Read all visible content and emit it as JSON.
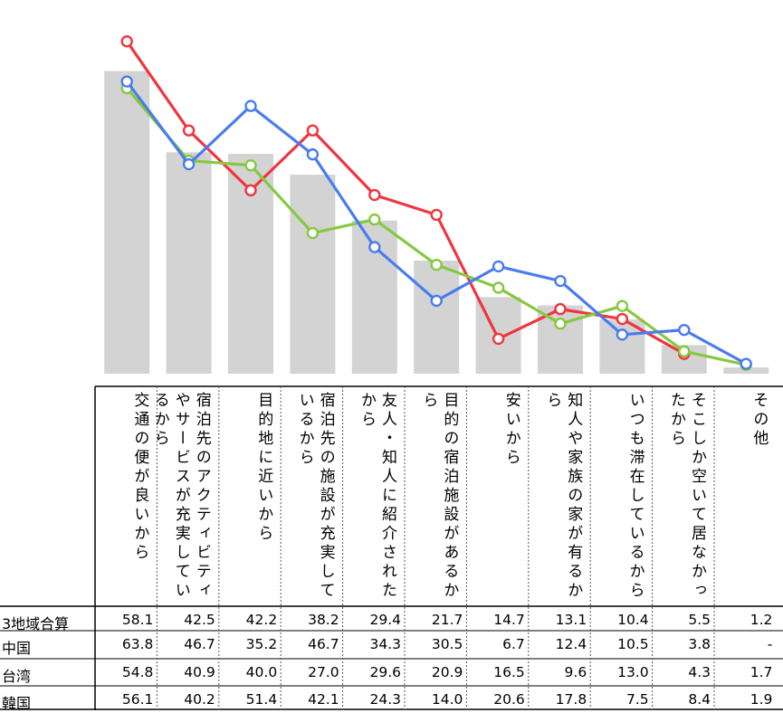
{
  "chart_data": {
    "type": "bar",
    "categories": [
      "交通の便が良いから",
      "宿泊先のアクティビティやサービスが充実しているから",
      "目的地に近いから",
      "宿泊先の施設が充実しているから",
      "友人・知人に紹介されたから",
      "目的の宿泊施設があるから",
      "安いから",
      "知人や家族の家が有るから",
      "いつも滞在しているから",
      "そこしか空いて居なかったから",
      "その他"
    ],
    "series": [
      {
        "name": "3地域合算",
        "chart": "bar",
        "color": "#d3d3d3",
        "values": [
          58.1,
          42.5,
          42.2,
          38.2,
          29.4,
          21.7,
          14.7,
          13.1,
          10.4,
          5.5,
          1.2
        ]
      },
      {
        "name": "中国",
        "chart": "line",
        "color": "#f0353f",
        "values": [
          63.8,
          46.7,
          35.2,
          46.7,
          34.3,
          30.5,
          6.7,
          12.4,
          10.5,
          3.8,
          null
        ]
      },
      {
        "name": "台湾",
        "chart": "line",
        "color": "#86c93f",
        "values": [
          54.8,
          40.9,
          40.0,
          27.0,
          29.6,
          20.9,
          16.5,
          9.6,
          13.0,
          4.3,
          1.7
        ]
      },
      {
        "name": "韓国",
        "chart": "line",
        "color": "#4a7cf0",
        "values": [
          56.1,
          40.2,
          51.4,
          42.1,
          24.3,
          14.0,
          20.6,
          17.8,
          7.5,
          8.4,
          1.9
        ]
      }
    ],
    "table_values": [
      [
        "58.1",
        "42.5",
        "42.2",
        "38.2",
        "29.4",
        "21.7",
        "14.7",
        "13.1",
        "10.4",
        "5.5",
        "1.2"
      ],
      [
        "63.8",
        "46.7",
        "35.2",
        "46.7",
        "34.3",
        "30.5",
        "6.7",
        "12.4",
        "10.5",
        "3.8",
        "-"
      ],
      [
        "54.8",
        "40.9",
        "40.0",
        "27.0",
        "29.6",
        "20.9",
        "16.5",
        "9.6",
        "13.0",
        "4.3",
        "1.7"
      ],
      [
        "56.1",
        "40.2",
        "51.4",
        "42.1",
        "24.3",
        "14.0",
        "20.6",
        "17.8",
        "7.5",
        "8.4",
        "1.9"
      ]
    ],
    "ylim": [
      0,
      70
    ],
    "grid": false
  }
}
